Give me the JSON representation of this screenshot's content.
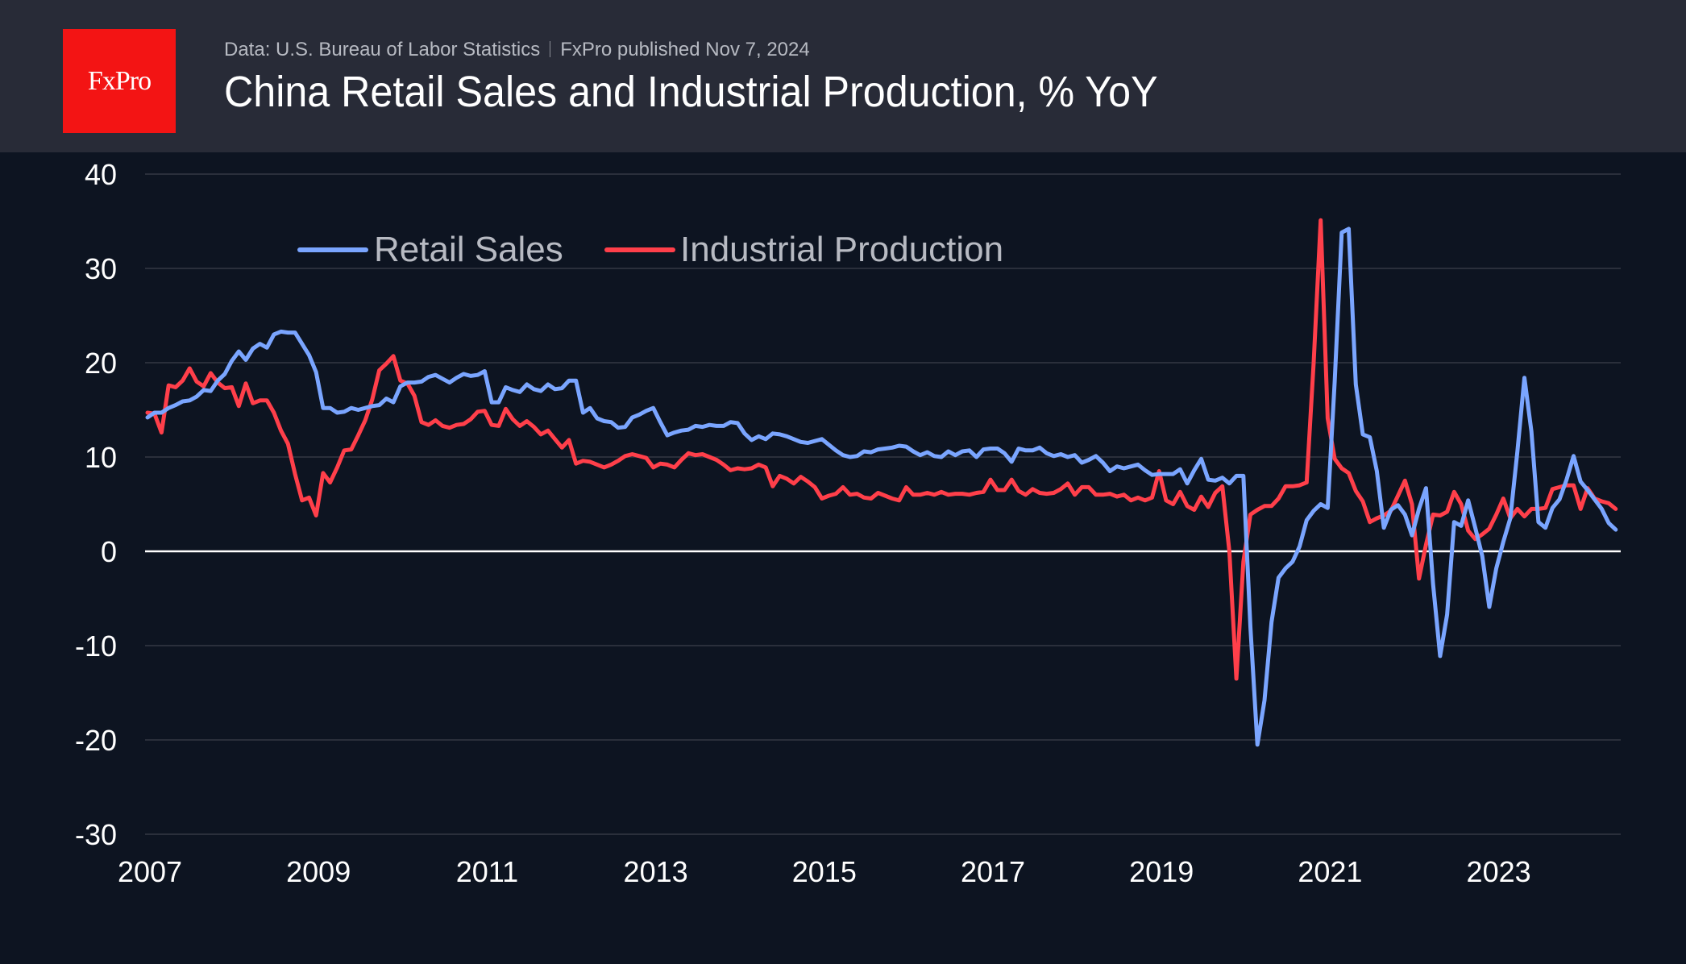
{
  "header": {
    "logo_text": "FxPro",
    "source": "Data: U.S. Bureau of Labor Statistics",
    "published": "FxPro published Nov 7, 2024",
    "title": "China Retail Sales and Industrial Production, % YoY"
  },
  "colors": {
    "retail_sales": "#7aa5ff",
    "industrial_production": "#ff3f4a",
    "background": "#0d1421",
    "header_bg": "#282b37",
    "logo_bg": "#f31414",
    "grid": "#2a2f3b",
    "zero_line": "#ffffff"
  },
  "chart_data": {
    "type": "line",
    "title": "China Retail Sales and Industrial Production, % YoY",
    "xlabel": "",
    "ylabel": "",
    "x_start": "2007-01",
    "x_frequency": "monthly",
    "xticks": [
      "2007",
      "2009",
      "2011",
      "2013",
      "2015",
      "2017",
      "2019",
      "2021",
      "2023"
    ],
    "yticks": [
      "40",
      "30",
      "20",
      "10",
      "0",
      "-10",
      "-20",
      "-30"
    ],
    "ylim": [
      -30,
      40
    ],
    "grid": true,
    "legend_position": "top-left",
    "series": [
      {
        "name": "Retail Sales",
        "values": [
          14.2,
          14.7,
          14.7,
          15.2,
          15.5,
          15.9,
          16.0,
          16.4,
          17.1,
          17.0,
          18.1,
          18.8,
          20.2,
          21.2,
          20.3,
          21.5,
          22.0,
          21.6,
          23.0,
          23.3,
          23.2,
          23.2,
          22.0,
          20.8,
          19.0,
          15.2,
          15.2,
          14.7,
          14.8,
          15.2,
          15.0,
          15.2,
          15.4,
          15.5,
          16.2,
          15.8,
          17.5,
          17.9,
          17.9,
          18.0,
          18.5,
          18.7,
          18.3,
          17.9,
          18.4,
          18.8,
          18.6,
          18.7,
          19.1,
          15.8,
          15.8,
          17.4,
          17.1,
          16.9,
          17.7,
          17.2,
          17.0,
          17.7,
          17.2,
          17.3,
          18.1,
          18.1,
          14.7,
          15.2,
          14.1,
          13.8,
          13.7,
          13.1,
          13.2,
          14.2,
          14.5,
          14.9,
          15.2,
          13.7,
          12.3,
          12.6,
          12.8,
          12.9,
          13.3,
          13.2,
          13.4,
          13.3,
          13.3,
          13.7,
          13.6,
          12.5,
          11.8,
          12.2,
          11.9,
          12.5,
          12.4,
          12.2,
          11.9,
          11.6,
          11.5,
          11.7,
          11.9,
          11.3,
          10.7,
          10.2,
          10.0,
          10.1,
          10.6,
          10.5,
          10.8,
          10.9,
          11.0,
          11.2,
          11.1,
          10.6,
          10.2,
          10.5,
          10.1,
          10.0,
          10.6,
          10.2,
          10.6,
          10.7,
          10.0,
          10.8,
          10.9,
          10.9,
          10.4,
          9.5,
          10.9,
          10.7,
          10.7,
          11.0,
          10.4,
          10.1,
          10.3,
          10.0,
          10.2,
          9.4,
          9.7,
          10.1,
          9.4,
          8.5,
          9.0,
          8.8,
          9.0,
          9.2,
          8.6,
          8.1,
          8.2,
          8.2,
          8.2,
          8.7,
          7.2,
          8.6,
          9.8,
          7.6,
          7.5,
          7.8,
          7.2,
          8.0,
          8.0,
          -8.0,
          -20.5,
          -15.8,
          -7.5,
          -2.8,
          -1.8,
          -1.1,
          0.5,
          3.3,
          4.3,
          5.0,
          4.6,
          18.0,
          33.8,
          34.2,
          17.7,
          12.4,
          12.1,
          8.5,
          2.5,
          4.4,
          4.9,
          3.9,
          1.7,
          4.5,
          6.7,
          -3.5,
          -11.1,
          -6.7,
          3.1,
          2.7,
          5.4,
          2.5,
          -0.5,
          -5.9,
          -1.8,
          1.0,
          3.5,
          10.6,
          18.4,
          12.7,
          3.1,
          2.5,
          4.6,
          5.5,
          7.6,
          10.1,
          7.4,
          6.5,
          5.5,
          4.5,
          3.0,
          2.3
        ]
      },
      {
        "name": "Industrial Production",
        "values": [
          14.7,
          14.6,
          12.6,
          17.6,
          17.4,
          18.1,
          19.4,
          18.0,
          17.5,
          18.9,
          17.9,
          17.3,
          17.4,
          15.4,
          17.8,
          15.7,
          16.0,
          16.0,
          14.7,
          12.8,
          11.4,
          8.2,
          5.4,
          5.7,
          3.8,
          8.3,
          7.3,
          8.9,
          10.7,
          10.8,
          12.3,
          13.9,
          16.1,
          19.2,
          19.9,
          20.7,
          18.1,
          17.8,
          16.5,
          13.7,
          13.4,
          13.9,
          13.3,
          13.1,
          13.4,
          13.5,
          14.0,
          14.8,
          14.9,
          13.4,
          13.3,
          15.1,
          14.0,
          13.3,
          13.8,
          13.2,
          12.4,
          12.8,
          11.9,
          11.0,
          11.8,
          9.3,
          9.6,
          9.5,
          9.2,
          8.9,
          9.2,
          9.6,
          10.1,
          10.3,
          10.1,
          9.9,
          8.9,
          9.3,
          9.2,
          8.9,
          9.7,
          10.4,
          10.2,
          10.3,
          10.0,
          9.7,
          9.2,
          8.6,
          8.8,
          8.7,
          8.8,
          9.2,
          8.9,
          6.9,
          8.0,
          7.7,
          7.2,
          7.9,
          7.4,
          6.8,
          5.6,
          5.9,
          6.1,
          6.8,
          6.0,
          6.1,
          5.7,
          5.6,
          6.2,
          5.9,
          5.6,
          5.4,
          6.8,
          6.0,
          6.0,
          6.2,
          6.0,
          6.3,
          6.0,
          6.1,
          6.1,
          6.0,
          6.2,
          6.3,
          7.6,
          6.5,
          6.5,
          7.6,
          6.4,
          6.0,
          6.6,
          6.2,
          6.1,
          6.2,
          6.6,
          7.2,
          6.0,
          6.8,
          6.8,
          6.0,
          6.0,
          6.1,
          5.8,
          6.0,
          5.4,
          5.7,
          5.4,
          5.7,
          8.5,
          5.4,
          5.0,
          6.3,
          4.8,
          4.4,
          5.8,
          4.7,
          6.2,
          6.9,
          0.0,
          -13.5,
          -1.1,
          3.9,
          4.4,
          4.8,
          4.8,
          5.6,
          6.9,
          6.9,
          7.0,
          7.3,
          20.0,
          35.1,
          14.1,
          9.8,
          8.8,
          8.3,
          6.4,
          5.3,
          3.1,
          3.5,
          3.8,
          4.3,
          5.9,
          7.5,
          5.0,
          -2.9,
          0.7,
          3.9,
          3.8,
          4.2,
          6.3,
          5.0,
          2.2,
          1.3,
          1.8,
          2.4,
          3.9,
          5.6,
          3.5,
          4.5,
          3.7,
          4.5,
          4.5,
          4.6,
          6.6,
          6.8,
          7.0,
          7.0,
          4.5,
          6.7,
          5.6,
          5.3,
          5.1,
          4.5
        ]
      }
    ]
  }
}
